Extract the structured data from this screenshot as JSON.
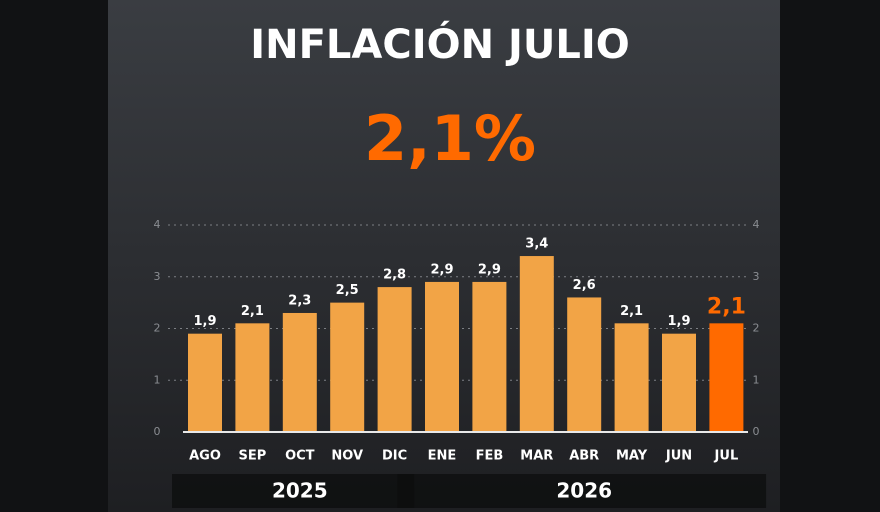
{
  "chart_data": {
    "type": "bar",
    "title": "INFLACIÓN JULIO",
    "headline": "2,1%",
    "categories": [
      "AGO",
      "SEP",
      "OCT",
      "NOV",
      "DIC",
      "ENE",
      "FEB",
      "MAR",
      "ABR",
      "MAY",
      "JUN",
      "JUL"
    ],
    "values": [
      1.9,
      2.1,
      2.3,
      2.5,
      2.8,
      2.9,
      2.9,
      3.4,
      2.6,
      2.1,
      1.9,
      2.1
    ],
    "value_labels": [
      "1,9",
      "2,1",
      "2,3",
      "2,5",
      "2,8",
      "2,9",
      "2,9",
      "3,4",
      "2,6",
      "2,1",
      "1,9",
      "2,1"
    ],
    "colors": [
      "#f2a446",
      "#f2a446",
      "#f2a446",
      "#f2a446",
      "#f2a446",
      "#f2a446",
      "#f2a446",
      "#f2a446",
      "#f2a446",
      "#f2a446",
      "#f2a446",
      "#ff6a00"
    ],
    "groups": [
      {
        "label": "2025",
        "count": 5
      },
      {
        "label": "2026",
        "count": 7
      }
    ],
    "ylim": [
      0,
      4
    ],
    "yticks": [
      0,
      1,
      2,
      3,
      4
    ],
    "grid": true
  }
}
